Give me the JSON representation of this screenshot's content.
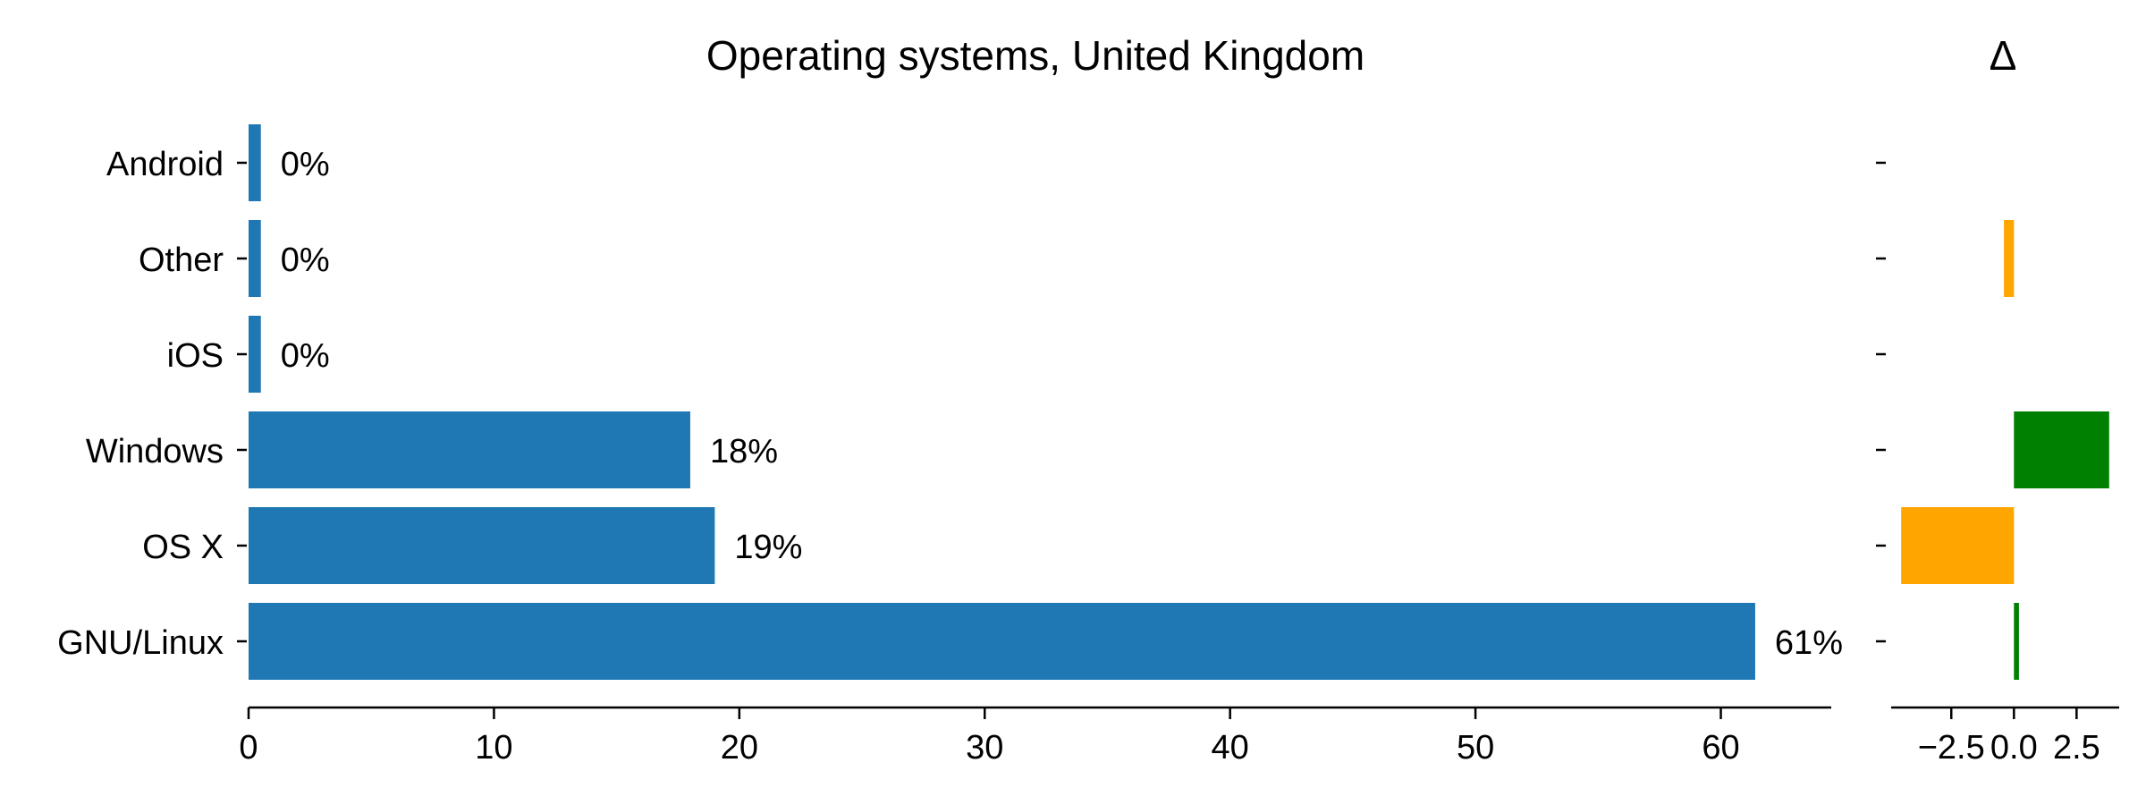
{
  "chart_data": [
    {
      "type": "bar",
      "orientation": "horizontal",
      "title": "Operating systems, United Kingdom",
      "categories": [
        "GNU/Linux",
        "OS X",
        "Windows",
        "iOS",
        "Other",
        "Android"
      ],
      "values": [
        61.4,
        19.0,
        18.0,
        0.5,
        0.5,
        0.5
      ],
      "data_labels": [
        "61%",
        "19%",
        "18%",
        "0%",
        "0%",
        "0%"
      ],
      "xlim": [
        0,
        64.5
      ],
      "xticks": [
        0,
        10,
        20,
        30,
        40,
        50,
        60
      ],
      "color": "#1f77b4",
      "grid": false
    },
    {
      "type": "bar",
      "orientation": "horizontal",
      "title": "Δ",
      "categories": [
        "GNU/Linux",
        "OS X",
        "Windows",
        "iOS",
        "Other",
        "Android"
      ],
      "values": [
        0.2,
        -4.5,
        3.8,
        0,
        -0.4,
        0
      ],
      "colors": [
        "#008000",
        "#ffa500",
        "#008000",
        "#008000",
        "#ffa500",
        "#008000"
      ],
      "xlim": [
        -4.9,
        4.2
      ],
      "xticks": [
        -2.5,
        0.0,
        2.5
      ],
      "xtick_labels": [
        "−2.5",
        "0.0",
        "2.5"
      ],
      "grid": false
    }
  ]
}
